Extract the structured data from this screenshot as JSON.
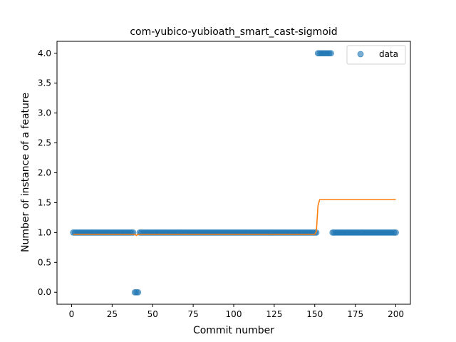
{
  "chart_data": {
    "type": "scatter",
    "title": "com-yubico-yubioath_smart_cast-sigmoid",
    "xlabel": "Commit number",
    "ylabel": "Number of instance of a feature",
    "xlim": [
      -9,
      209
    ],
    "ylim": [
      -0.2,
      4.2
    ],
    "xticks": [
      0,
      25,
      50,
      75,
      100,
      125,
      150,
      175,
      200
    ],
    "yticks": [
      0.0,
      0.5,
      1.0,
      1.5,
      2.0,
      2.5,
      3.0,
      3.5,
      4.0
    ],
    "xtick_labels": [
      "0",
      "25",
      "50",
      "75",
      "100",
      "125",
      "150",
      "175",
      "200"
    ],
    "ytick_labels": [
      "0.0",
      "0.5",
      "1.0",
      "1.5",
      "2.0",
      "2.5",
      "3.0",
      "3.5",
      "4.0"
    ],
    "legend": {
      "position": "upper right",
      "entries": [
        "data"
      ]
    },
    "grid": false,
    "colors": {
      "data": "#1f77b4",
      "fit": "#ff7f0e"
    },
    "series": [
      {
        "name": "data",
        "kind": "scatter",
        "segments": [
          {
            "x_start": 1,
            "x_end": 38,
            "y": 1
          },
          {
            "x_start": 39,
            "x_end": 41,
            "y": 0
          },
          {
            "x_start": 42,
            "x_end": 151,
            "y": 1
          },
          {
            "x_start": 152,
            "x_end": 160,
            "y": 4
          },
          {
            "x_start": 161,
            "x_end": 200,
            "y": 1
          }
        ]
      },
      {
        "kind": "line",
        "x": [
          1,
          39,
          40,
          41,
          42,
          150,
          151,
          152,
          153,
          200
        ],
        "y": [
          0.97,
          0.97,
          0.95,
          0.97,
          0.97,
          0.97,
          1.02,
          1.45,
          1.55,
          1.55
        ]
      }
    ]
  }
}
